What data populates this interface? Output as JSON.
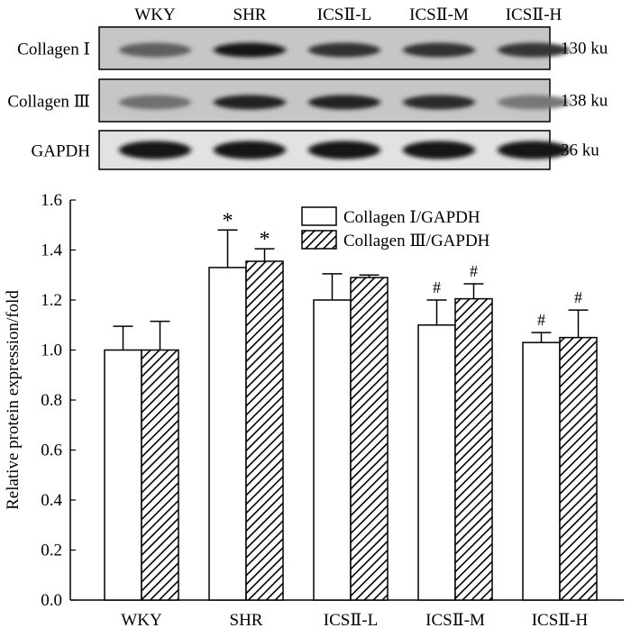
{
  "blot": {
    "lanes": [
      "WKY",
      "SHR",
      "ICSⅡ-L",
      "ICSⅡ-M",
      "ICSⅡ-H"
    ],
    "rows": [
      {
        "label": "Collagen Ⅰ",
        "size": "130 ku",
        "intensity": [
          0.55,
          0.95,
          0.8,
          0.8,
          0.78
        ]
      },
      {
        "label": "Collagen Ⅲ",
        "size": "138 ku",
        "intensity": [
          0.45,
          0.9,
          0.88,
          0.85,
          0.4
        ]
      },
      {
        "label": "GAPDH",
        "size": "36 ku",
        "intensity": [
          0.98,
          0.98,
          0.98,
          0.98,
          0.98
        ]
      }
    ]
  },
  "chart_data": {
    "type": "bar",
    "categories": [
      "WKY",
      "SHR",
      "ICSⅡ-L",
      "ICSⅡ-M",
      "ICSⅡ-H"
    ],
    "series": [
      {
        "name": "Collagen Ⅰ/GAPDH",
        "fill": "white",
        "values": [
          1.0,
          1.33,
          1.2,
          1.1,
          1.03
        ],
        "errors": [
          0.095,
          0.15,
          0.105,
          0.1,
          0.04
        ],
        "marks": [
          "",
          "*",
          "",
          "#",
          "#"
        ]
      },
      {
        "name": "Collagen Ⅲ/GAPDH",
        "fill": "hatched",
        "values": [
          1.0,
          1.355,
          1.29,
          1.205,
          1.05
        ],
        "errors": [
          0.115,
          0.05,
          0.01,
          0.06,
          0.11
        ],
        "marks": [
          "",
          "*",
          "",
          "#",
          "#"
        ]
      }
    ],
    "title": "",
    "xlabel": "",
    "ylabel": "Relative protein expression/fold",
    "ylim": [
      0,
      1.6
    ],
    "yticks": [
      "0.0",
      "0.2",
      "0.4",
      "0.6",
      "0.8",
      "1.0",
      "1.2",
      "1.4",
      "1.6"
    ],
    "legend": "top-right",
    "grid": false
  }
}
